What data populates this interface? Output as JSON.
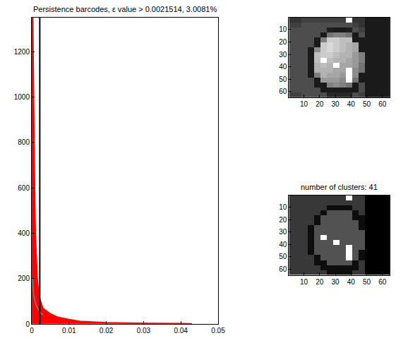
{
  "chart_data": [
    {
      "type": "line",
      "title": "Persistence barcodes, ε value > 0.0021514, 3.0081%",
      "series": [
        {
          "type": "area",
          "color": "#ff0000",
          "x": [
            0.0003,
            0.0005,
            0.0008,
            0.001,
            0.0015,
            0.002,
            0.003,
            0.005,
            0.007,
            0.01,
            0.013,
            0.02,
            0.025,
            0.03,
            0.04,
            0.043
          ],
          "values": [
            1350,
            1000,
            600,
            400,
            200,
            120,
            70,
            45,
            30,
            20,
            12,
            6,
            4,
            3,
            2,
            1
          ]
        },
        {
          "type": "line",
          "color": "#808080",
          "x": [
            0.0002,
            0.0005,
            0.001,
            0.002,
            0.003
          ],
          "values": [
            200,
            130,
            90,
            55,
            40
          ]
        }
      ],
      "vline": {
        "value": 0.0021514,
        "color": "#000000"
      },
      "xlim": [
        0,
        0.05
      ],
      "xticks": [
        0,
        0.01,
        0.02,
        0.03,
        0.04,
        0.05
      ],
      "ylim": [
        0,
        1350
      ],
      "yticks": [
        0,
        200,
        400,
        600,
        800,
        1000,
        1200
      ],
      "grid": false
    },
    {
      "type": "heatmap",
      "color": "gray",
      "x": [
        2.5,
        6.5,
        10.5,
        14.5,
        18.5,
        22.5,
        26.5,
        30.5,
        34.5,
        38.5,
        42.5,
        46.5,
        50.5,
        54.5,
        58.5,
        62.5
      ],
      "y": [
        2.5,
        6.5,
        10.5,
        14.5,
        18.5,
        22.5,
        26.5,
        30.5,
        34.5,
        38.5,
        42.5,
        46.5,
        50.5,
        54.5,
        58.5,
        62.5
      ],
      "z": [
        [
          0.2,
          0.2,
          0.25,
          0.25,
          0.25,
          0.25,
          0.25,
          0.25,
          0.25,
          1.0,
          0.2,
          0.2,
          0.1,
          0.1,
          0.1,
          0.1
        ],
        [
          0.25,
          0.25,
          0.3,
          0.3,
          0.3,
          0.3,
          0.3,
          0.3,
          0.3,
          0.3,
          0.25,
          0.2,
          0.1,
          0.1,
          0.1,
          0.1
        ],
        [
          0.3,
          0.3,
          0.3,
          0.3,
          0.3,
          0.3,
          0.12,
          0.1,
          0.1,
          0.12,
          0.3,
          0.25,
          0.1,
          0.1,
          0.1,
          0.1
        ],
        [
          0.3,
          0.3,
          0.3,
          0.3,
          0.3,
          0.1,
          0.45,
          0.5,
          0.5,
          0.45,
          0.1,
          0.3,
          0.1,
          0.1,
          0.1,
          0.1
        ],
        [
          0.3,
          0.3,
          0.3,
          0.3,
          0.1,
          0.5,
          0.8,
          0.8,
          0.75,
          0.75,
          0.1,
          0.1,
          0.1,
          0.1,
          0.1,
          0.1
        ],
        [
          0.3,
          0.3,
          0.3,
          0.3,
          0.1,
          0.8,
          0.85,
          0.8,
          0.75,
          0.7,
          0.65,
          0.1,
          0.1,
          0.1,
          0.1,
          0.1
        ],
        [
          0.3,
          0.3,
          0.3,
          0.1,
          0.55,
          0.8,
          0.85,
          0.8,
          0.75,
          0.7,
          0.65,
          0.1,
          0.1,
          0.1,
          0.1,
          0.1
        ],
        [
          0.3,
          0.3,
          0.3,
          0.1,
          0.75,
          0.8,
          0.8,
          0.75,
          0.7,
          0.7,
          0.6,
          0.5,
          0.1,
          0.1,
          0.1,
          0.1
        ],
        [
          0.3,
          0.3,
          0.3,
          0.1,
          0.75,
          1.0,
          0.75,
          0.7,
          0.7,
          0.65,
          0.6,
          0.5,
          0.1,
          0.1,
          0.1,
          0.1
        ],
        [
          0.3,
          0.3,
          0.3,
          0.1,
          0.7,
          0.75,
          0.7,
          1.0,
          0.65,
          0.65,
          0.6,
          0.45,
          0.1,
          0.1,
          0.1,
          0.1
        ],
        [
          0.3,
          0.3,
          0.3,
          0.1,
          0.7,
          0.7,
          0.7,
          0.65,
          0.65,
          1.0,
          0.55,
          0.45,
          0.1,
          0.1,
          0.1,
          0.1
        ],
        [
          0.3,
          0.3,
          0.3,
          0.1,
          0.5,
          0.7,
          0.65,
          0.65,
          0.6,
          1.0,
          0.55,
          0.1,
          0.1,
          0.1,
          0.1,
          0.1
        ],
        [
          0.3,
          0.3,
          0.3,
          0.3,
          0.1,
          0.6,
          0.6,
          0.6,
          0.55,
          1.0,
          0.45,
          0.1,
          0.1,
          0.1,
          0.1,
          0.1
        ],
        [
          0.3,
          0.3,
          0.3,
          0.3,
          0.1,
          0.1,
          0.5,
          0.55,
          0.5,
          0.45,
          0.1,
          0.3,
          0.1,
          0.1,
          0.1,
          0.1
        ],
        [
          0.3,
          0.3,
          0.3,
          0.3,
          0.3,
          0.1,
          0.1,
          0.1,
          0.1,
          0.1,
          0.1,
          0.3,
          0.1,
          0.1,
          0.1,
          0.1
        ],
        [
          0.25,
          0.25,
          0.3,
          0.3,
          0.3,
          0.3,
          0.15,
          0.15,
          0.15,
          0.15,
          0.3,
          0.25,
          0.1,
          0.1,
          0.1,
          0.1
        ]
      ],
      "zlim": [
        0,
        1
      ],
      "xlim": [
        0.5,
        64.5
      ],
      "xticks": [
        10,
        20,
        30,
        40,
        50,
        60
      ],
      "ylim": [
        64.5,
        0.5
      ],
      "yticks": [
        10,
        20,
        30,
        40,
        50,
        60
      ]
    },
    {
      "type": "heatmap",
      "color": "gray",
      "title": "number of clusters: 41",
      "x": [
        2.5,
        6.5,
        10.5,
        14.5,
        18.5,
        22.5,
        26.5,
        30.5,
        34.5,
        38.5,
        42.5,
        46.5,
        50.5,
        54.5,
        58.5,
        62.5
      ],
      "y": [
        2.5,
        6.5,
        10.5,
        14.5,
        18.5,
        22.5,
        26.5,
        30.5,
        34.5,
        38.5,
        42.5,
        46.5,
        50.5,
        54.5,
        58.5,
        62.5
      ],
      "z": [
        [
          0.22,
          0.22,
          0.22,
          0.22,
          0.22,
          0.22,
          0.22,
          0.22,
          0.22,
          1.0,
          0.22,
          0.22,
          0,
          0,
          0,
          0
        ],
        [
          0.22,
          0.22,
          0.22,
          0.22,
          0.22,
          0.22,
          0.22,
          0.22,
          0.22,
          0.22,
          0.22,
          0.22,
          0,
          0,
          0,
          0
        ],
        [
          0.22,
          0.22,
          0.22,
          0.22,
          0.22,
          0.22,
          0.05,
          0.05,
          0.05,
          0.05,
          0.22,
          0.22,
          0,
          0,
          0,
          0
        ],
        [
          0.22,
          0.22,
          0.22,
          0.22,
          0.22,
          0.05,
          0.32,
          0.32,
          0.32,
          0.32,
          0.05,
          0.22,
          0,
          0,
          0,
          0
        ],
        [
          0.22,
          0.22,
          0.22,
          0.22,
          0.05,
          0.32,
          0.32,
          0.32,
          0.32,
          0.32,
          0.05,
          0.05,
          0,
          0,
          0,
          0
        ],
        [
          0.22,
          0.22,
          0.22,
          0.22,
          0.05,
          0.32,
          0.32,
          0.32,
          0.32,
          0.32,
          0.32,
          0.05,
          0,
          0,
          0,
          0
        ],
        [
          0.22,
          0.22,
          0.22,
          0.05,
          0.32,
          0.32,
          0.32,
          0.32,
          0.32,
          0.32,
          0.32,
          0.05,
          0,
          0,
          0,
          0
        ],
        [
          0.22,
          0.22,
          0.22,
          0.05,
          0.32,
          0.32,
          0.32,
          0.32,
          0.32,
          0.32,
          0.32,
          0.32,
          0,
          0,
          0,
          0
        ],
        [
          0.22,
          0.22,
          0.22,
          0.05,
          0.32,
          1.0,
          0.32,
          0.32,
          0.32,
          0.32,
          0.32,
          0.32,
          0,
          0,
          0,
          0
        ],
        [
          0.22,
          0.22,
          0.22,
          0.05,
          0.32,
          0.32,
          0.32,
          1.0,
          0.32,
          0.32,
          0.32,
          0.32,
          0,
          0,
          0,
          0
        ],
        [
          0.22,
          0.22,
          0.22,
          0.05,
          0.32,
          0.32,
          0.32,
          0.32,
          0.32,
          1.0,
          0.32,
          0.32,
          0,
          0,
          0,
          0
        ],
        [
          0.22,
          0.22,
          0.22,
          0.05,
          0.32,
          0.32,
          0.32,
          0.32,
          0.32,
          1.0,
          0.32,
          0.05,
          0,
          0,
          0,
          0
        ],
        [
          0.22,
          0.22,
          0.22,
          0.22,
          0.05,
          0.32,
          0.32,
          0.32,
          0.32,
          1.0,
          0.32,
          0.05,
          0,
          0,
          0,
          0
        ],
        [
          0.22,
          0.22,
          0.22,
          0.22,
          0.05,
          0.05,
          0.32,
          0.32,
          0.32,
          0.32,
          0.05,
          0.22,
          0,
          0,
          0,
          0
        ],
        [
          0.22,
          0.22,
          0.22,
          0.22,
          0.22,
          0.05,
          0.05,
          0.05,
          0.05,
          0.05,
          0.05,
          0.22,
          0,
          0,
          0,
          0
        ],
        [
          0.22,
          0.22,
          0.22,
          0.22,
          0.22,
          0.22,
          0.05,
          0.05,
          0.05,
          0.05,
          0.22,
          0.22,
          0,
          0,
          0,
          0
        ]
      ],
      "zlim": [
        0,
        1
      ],
      "xlim": [
        0.5,
        64.5
      ],
      "xticks": [
        10,
        20,
        30,
        40,
        50,
        60
      ],
      "ylim": [
        64.5,
        0.5
      ],
      "yticks": [
        10,
        20,
        30,
        40,
        50,
        60
      ]
    }
  ]
}
